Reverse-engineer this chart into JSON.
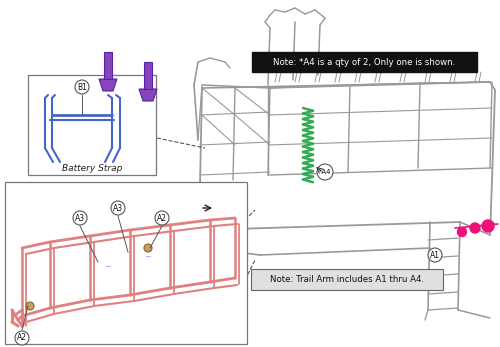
{
  "bg_color": "#ffffff",
  "note1": "Note: *A4 is a qty of 2, Only one is shown.",
  "note2": "Note: Trail Arm includes A1 thru A4.",
  "label_b1": "B1",
  "label_battery": "Battery Strap",
  "label_a1": "A1",
  "label_a2": "A2",
  "label_a3": "A3",
  "label_a4": "*A4",
  "frame_color": "#999999",
  "frame_color_dark": "#555555",
  "blue_color": "#4466cc",
  "pink_color": "#ee1177",
  "green_color": "#33aa55",
  "purple_color": "#8844bb",
  "salmon_color": "#e08080",
  "note1_bg": "#111111",
  "note1_text": "#ffffff",
  "note2_bg": "#e0e0e0",
  "note2_text": "#111111",
  "note2_border": "#666666",
  "circle_bg": "#ffffff",
  "circle_border": "#555555",
  "inset_border": "#777777",
  "tan_color": "#c8a060"
}
